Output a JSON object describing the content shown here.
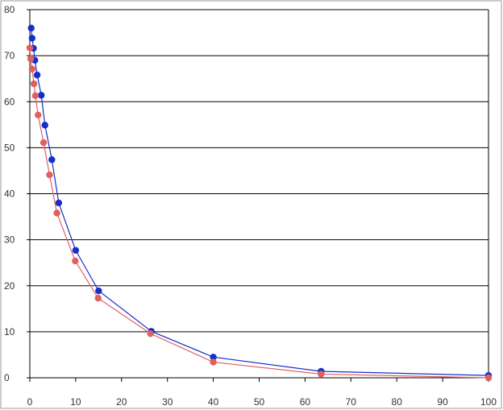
{
  "chart_data": {
    "type": "scatter",
    "title": "",
    "xlabel": "",
    "ylabel": "",
    "xlim": [
      0,
      100
    ],
    "ylim": [
      0,
      80
    ],
    "x_ticks": [
      "0",
      "10",
      "20",
      "30",
      "40",
      "50",
      "60",
      "70",
      "80",
      "90",
      "100"
    ],
    "y_ticks": [
      "0",
      "10",
      "20",
      "30",
      "40",
      "50",
      "60",
      "70",
      "80"
    ],
    "grid": "horizontal",
    "legend": "none",
    "series": [
      {
        "color": "#1530c8",
        "points": [
          [
            0.3,
            76.0
          ],
          [
            0.5,
            73.8
          ],
          [
            0.8,
            71.6
          ],
          [
            1.1,
            69.0
          ],
          [
            1.6,
            65.8
          ],
          [
            2.5,
            61.4
          ],
          [
            3.3,
            54.9
          ],
          [
            4.8,
            47.4
          ],
          [
            6.3,
            38.0
          ],
          [
            10.0,
            27.7
          ],
          [
            15.0,
            18.9
          ],
          [
            26.5,
            10.1
          ],
          [
            40.0,
            4.5
          ],
          [
            63.5,
            1.4
          ],
          [
            100.0,
            0.5
          ]
        ]
      },
      {
        "color": "#e06060",
        "points": [
          [
            0.0,
            71.7
          ],
          [
            0.2,
            69.3
          ],
          [
            0.5,
            67.1
          ],
          [
            0.9,
            63.9
          ],
          [
            1.2,
            61.3
          ],
          [
            1.8,
            57.1
          ],
          [
            3.0,
            51.1
          ],
          [
            4.3,
            44.1
          ],
          [
            5.9,
            35.8
          ],
          [
            9.9,
            25.4
          ],
          [
            14.9,
            17.3
          ],
          [
            26.3,
            9.6
          ],
          [
            40.0,
            3.4
          ],
          [
            63.5,
            0.8
          ],
          [
            100.0,
            0.0
          ]
        ]
      }
    ]
  }
}
